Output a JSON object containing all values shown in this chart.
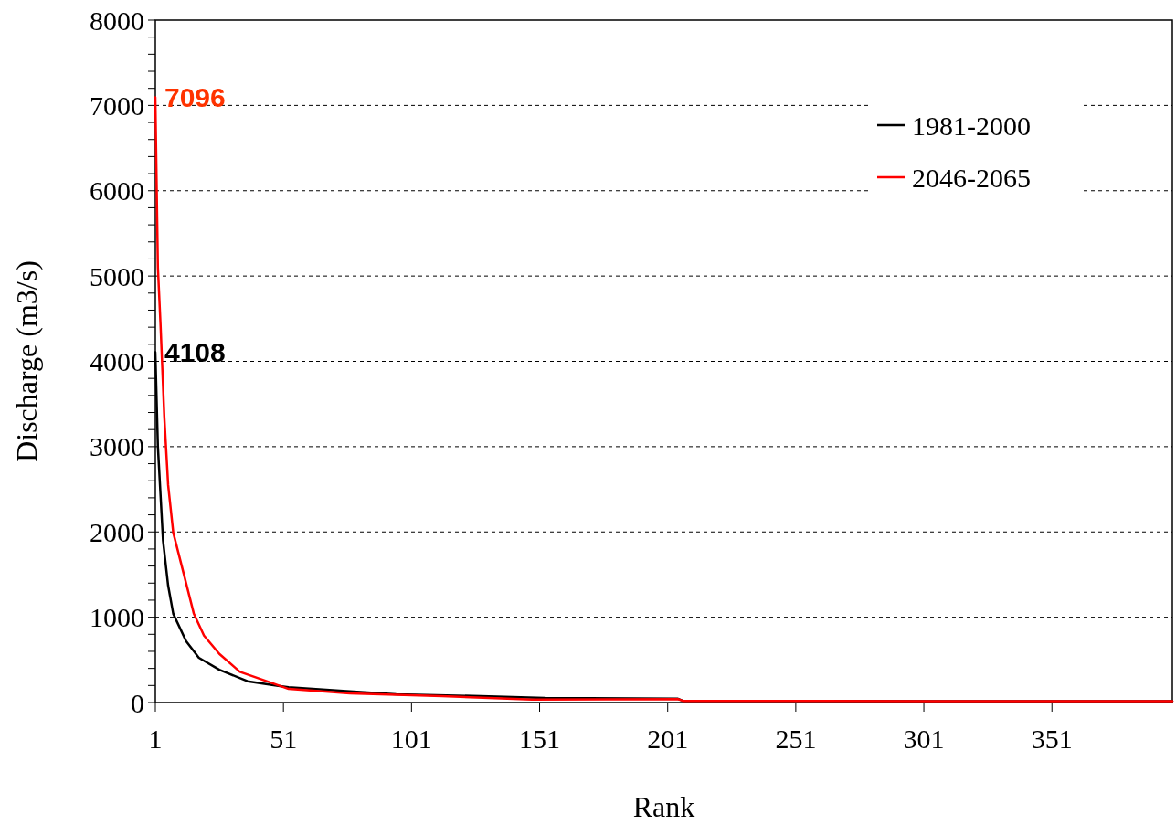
{
  "chart_data": {
    "type": "line",
    "xlabel": "Rank",
    "ylabel": "Discharge (m3/s)",
    "xlim": [
      1,
      398
    ],
    "xticks": [
      1,
      51,
      101,
      151,
      201,
      251,
      301,
      351
    ],
    "ylim": [
      0,
      8000
    ],
    "yticks": [
      0,
      {
        "value": 200,
        "label": null
      },
      {
        "value": 400,
        "label": null
      },
      {
        "value": 600,
        "label": null
      },
      {
        "value": 800,
        "label": null
      },
      1000,
      {
        "value": 1200,
        "label": null
      },
      {
        "value": 1400,
        "label": null
      },
      {
        "value": 1600,
        "label": null
      },
      {
        "value": 1800,
        "label": null
      },
      2000,
      {
        "value": 2200,
        "label": null
      },
      {
        "value": 2400,
        "label": null
      },
      {
        "value": 2600,
        "label": null
      },
      {
        "value": 2800,
        "label": null
      },
      3000,
      {
        "value": 3200,
        "label": null
      },
      {
        "value": 3400,
        "label": null
      },
      {
        "value": 3600,
        "label": null
      },
      {
        "value": 3800,
        "label": null
      },
      4000,
      {
        "value": 4200,
        "label": null
      },
      {
        "value": 4400,
        "label": null
      },
      {
        "value": 4600,
        "label": null
      },
      {
        "value": 4800,
        "label": null
      },
      5000,
      {
        "value": 5200,
        "label": null
      },
      {
        "value": 5400,
        "label": null
      },
      {
        "value": 5600,
        "label": null
      },
      {
        "value": 5800,
        "label": null
      },
      6000,
      {
        "value": 6200,
        "label": null
      },
      {
        "value": 6400,
        "label": null
      },
      {
        "value": 6600,
        "label": null
      },
      {
        "value": 6800,
        "label": null
      },
      7000,
      {
        "value": 7200,
        "label": null
      },
      {
        "value": 7400,
        "label": null
      },
      {
        "value": 7600,
        "label": null
      },
      {
        "value": 7800,
        "label": null
      },
      8000
    ],
    "grid": "y",
    "legend": "top right",
    "marker": "none",
    "line_style": "solid",
    "series": [
      {
        "name": "1981-2000",
        "color": "#000000",
        "x": [
          1,
          2,
          4,
          6,
          8,
          13,
          18,
          26,
          37,
          49,
          53,
          77,
          95,
          128,
          153,
          205,
          207,
          260,
          320,
          398
        ],
        "values": [
          4108,
          3000,
          1900,
          1370,
          1040,
          720,
          525,
          385,
          250,
          195,
          180,
          130,
          96,
          75,
          54,
          45,
          20,
          18,
          16,
          15
        ]
      },
      {
        "name": "2046-2065",
        "color": "#ff0000",
        "x": [
          1,
          2,
          3,
          4.5,
          6,
          8,
          12,
          16,
          20,
          26,
          34,
          45,
          53,
          77,
          113,
          148,
          205,
          207,
          260,
          320,
          398
        ],
        "values": [
          7096,
          5100,
          4450,
          3350,
          2550,
          1990,
          1520,
          1045,
          785,
          570,
          360,
          245,
          160,
          107,
          75,
          35,
          40,
          20,
          18,
          16,
          15
        ]
      }
    ],
    "annotations": [
      {
        "text": "4108",
        "x": 1,
        "y": 4108
      },
      {
        "text": "7096",
        "x": 1,
        "y": 7096
      }
    ]
  }
}
